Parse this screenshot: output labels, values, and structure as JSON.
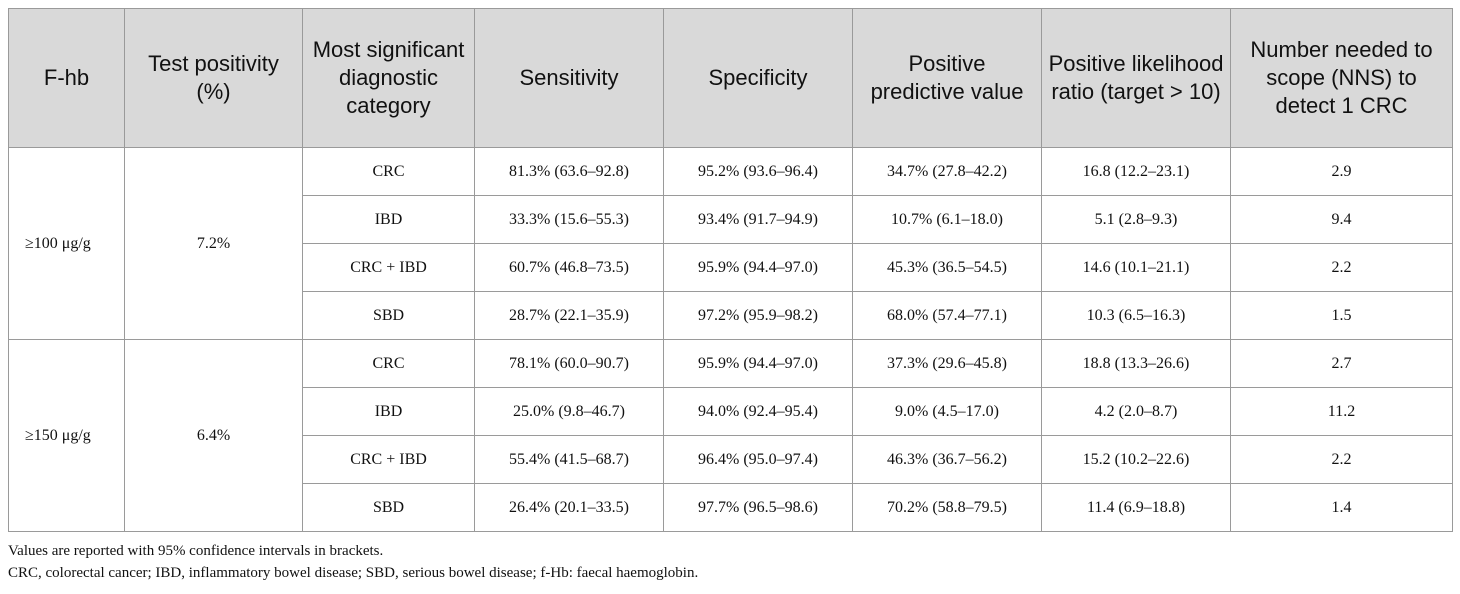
{
  "headers": [
    "F-hb",
    "Test positivity (%)",
    "Most significant diagnostic category",
    "Sensitivity",
    "Specificity",
    "Positive predictive value",
    "Positive likelihood ratio (target > 10)",
    "Number needed to scope (NNS) to detect 1 CRC"
  ],
  "groups": [
    {
      "fhb": "≥100 μg/g",
      "positivity": "7.2%",
      "rows": [
        {
          "category": "CRC",
          "sensitivity": "81.3% (63.6–92.8)",
          "specificity": "95.2% (93.6–96.4)",
          "ppv": "34.7% (27.8–42.2)",
          "plr": "16.8 (12.2–23.1)",
          "nns": "2.9"
        },
        {
          "category": "IBD",
          "sensitivity": "33.3% (15.6–55.3)",
          "specificity": "93.4% (91.7–94.9)",
          "ppv": "10.7% (6.1–18.0)",
          "plr": "5.1 (2.8–9.3)",
          "nns": "9.4"
        },
        {
          "category": "CRC + IBD",
          "sensitivity": "60.7% (46.8–73.5)",
          "specificity": "95.9% (94.4–97.0)",
          "ppv": "45.3% (36.5–54.5)",
          "plr": "14.6 (10.1–21.1)",
          "nns": "2.2"
        },
        {
          "category": "SBD",
          "sensitivity": "28.7% (22.1–35.9)",
          "specificity": "97.2% (95.9–98.2)",
          "ppv": "68.0% (57.4–77.1)",
          "plr": "10.3 (6.5–16.3)",
          "nns": "1.5"
        }
      ]
    },
    {
      "fhb": "≥150 μg/g",
      "positivity": "6.4%",
      "rows": [
        {
          "category": "CRC",
          "sensitivity": "78.1% (60.0–90.7)",
          "specificity": "95.9% (94.4–97.0)",
          "ppv": "37.3% (29.6–45.8)",
          "plr": "18.8 (13.3–26.6)",
          "nns": "2.7"
        },
        {
          "category": "IBD",
          "sensitivity": "25.0% (9.8–46.7)",
          "specificity": "94.0% (92.4–95.4)",
          "ppv": "9.0% (4.5–17.0)",
          "plr": "4.2 (2.0–8.7)",
          "nns": "11.2"
        },
        {
          "category": "CRC + IBD",
          "sensitivity": "55.4% (41.5–68.7)",
          "specificity": "96.4% (95.0–97.4)",
          "ppv": "46.3% (36.7–56.2)",
          "plr": "15.2 (10.2–22.6)",
          "nns": "2.2"
        },
        {
          "category": "SBD",
          "sensitivity": "26.4% (20.1–33.5)",
          "specificity": "97.7% (96.5–98.6)",
          "ppv": "70.2% (58.8–79.5)",
          "plr": "11.4 (6.9–18.8)",
          "nns": "1.4"
        }
      ]
    }
  ],
  "footnotes": [
    "Values are reported with 95% confidence intervals in brackets.",
    "CRC, colorectal cancer; IBD, inflammatory bowel disease; SBD, serious bowel disease; f-Hb: faecal haemoglobin."
  ]
}
